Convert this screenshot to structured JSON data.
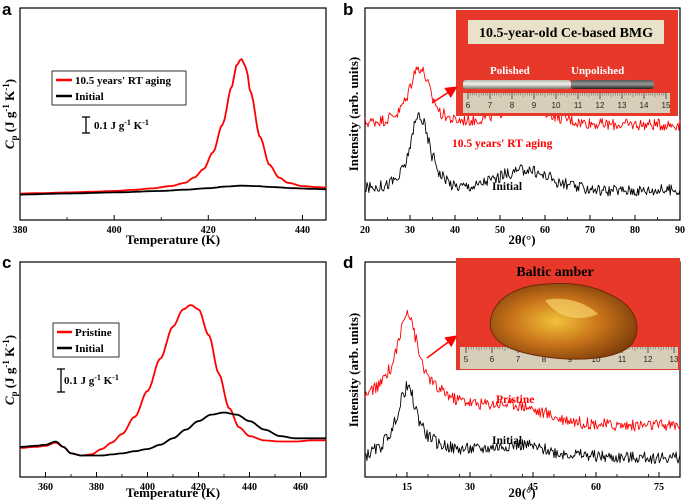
{
  "colors": {
    "aged": "#ff0000",
    "initial": "#000000",
    "photo_bg": "#e8382a"
  },
  "chart_data": [
    {
      "panel": "a",
      "type": "line",
      "xlabel": "Temperature (K)",
      "ylabel": "Cp (J g-1 K-1)",
      "ylabel_parts": {
        "main": "C",
        "sub": "p",
        "rest1": " (J g",
        "sup1": "-1",
        "rest2": " K",
        "sup2": "-1",
        "rest3": ")"
      },
      "xlim": [
        380,
        445
      ],
      "xticks": [
        380,
        400,
        420,
        440
      ],
      "ylim": [
        0,
        1
      ],
      "yticks": "none",
      "legend": {
        "placement": "top-left",
        "entries": [
          "10.5 years' RT aging",
          "Initial"
        ]
      },
      "scalebar": {
        "label": "0.1 J g-1 K-1",
        "parts": {
          "pre": "0.1 J g",
          "sup1": "-1",
          "mid": " K",
          "sup2": "-1"
        }
      },
      "series": [
        {
          "name": "10.5 years' RT aging",
          "color": "#ff0000",
          "x": [
            380,
            385,
            390,
            395,
            400,
            404,
            408,
            412,
            415,
            417,
            419,
            421,
            423,
            425,
            426,
            427,
            428,
            429,
            431,
            433,
            435,
            437,
            440,
            443,
            445
          ],
          "y": [
            0.125,
            0.127,
            0.13,
            0.133,
            0.137,
            0.142,
            0.149,
            0.16,
            0.175,
            0.2,
            0.24,
            0.32,
            0.45,
            0.63,
            0.73,
            0.76,
            0.72,
            0.6,
            0.39,
            0.26,
            0.2,
            0.175,
            0.16,
            0.155,
            0.153
          ]
        },
        {
          "name": "Initial",
          "color": "#000000",
          "x": [
            380,
            390,
            400,
            410,
            415,
            420,
            424,
            427,
            430,
            434,
            438,
            442,
            445
          ],
          "y": [
            0.12,
            0.125,
            0.13,
            0.137,
            0.143,
            0.15,
            0.158,
            0.162,
            0.16,
            0.155,
            0.15,
            0.147,
            0.145
          ]
        }
      ]
    },
    {
      "panel": "b",
      "type": "line",
      "xlabel": "2θ(°)",
      "ylabel": "Intensity (arb. units)",
      "xlim": [
        20,
        90
      ],
      "xticks": [
        20,
        30,
        40,
        50,
        60,
        70,
        80,
        90
      ],
      "ylim": [
        0,
        1
      ],
      "annotations": [
        "10.5 years' RT aging",
        "Initial"
      ],
      "photo": {
        "title": "10.5-year-old Ce-based BMG",
        "labels": [
          "Polished",
          "Unpolished"
        ],
        "ruler": [
          "6",
          "7",
          "8",
          "9",
          "10",
          "11",
          "12",
          "13",
          "14",
          "15"
        ]
      },
      "series": [
        {
          "name": "10.5 years' RT aging",
          "color": "#ff0000",
          "x": [
            20,
            24,
            27,
            29,
            30,
            31,
            32,
            33,
            34,
            35,
            37,
            40,
            44,
            48,
            52,
            56,
            60,
            64,
            68,
            74,
            80,
            90
          ],
          "y": [
            0.46,
            0.47,
            0.5,
            0.56,
            0.63,
            0.7,
            0.72,
            0.7,
            0.64,
            0.57,
            0.5,
            0.47,
            0.47,
            0.49,
            0.52,
            0.53,
            0.51,
            0.48,
            0.46,
            0.45,
            0.45,
            0.45
          ]
        },
        {
          "name": "Initial",
          "color": "#000000",
          "x": [
            20,
            24,
            27,
            29,
            30,
            31,
            32,
            33,
            34,
            35,
            37,
            40,
            44,
            48,
            52,
            56,
            60,
            64,
            68,
            74,
            80,
            90
          ],
          "y": [
            0.15,
            0.16,
            0.19,
            0.26,
            0.35,
            0.45,
            0.5,
            0.46,
            0.38,
            0.3,
            0.21,
            0.16,
            0.16,
            0.19,
            0.22,
            0.24,
            0.21,
            0.17,
            0.15,
            0.14,
            0.14,
            0.14
          ]
        }
      ]
    },
    {
      "panel": "c",
      "type": "line",
      "xlabel": "Temperature (K)",
      "ylabel": "Cp (J g-1 K-1)",
      "ylabel_parts": {
        "main": "C",
        "sub": "p",
        "rest1": " (J g",
        "sup1": "-1",
        "rest2": " K",
        "sup2": "-1",
        "rest3": ")"
      },
      "xlim": [
        350,
        470
      ],
      "xticks": [
        360,
        380,
        400,
        420,
        440,
        460
      ],
      "ylim": [
        0,
        1
      ],
      "legend": {
        "placement": "center-left",
        "entries": [
          "Pristine",
          "Initial"
        ]
      },
      "scalebar": {
        "label": "0.1 J g-1 K-1",
        "parts": {
          "pre": "0.1 J g",
          "sup1": "-1",
          "mid": " K",
          "sup2": "-1"
        }
      },
      "series": [
        {
          "name": "Pristine",
          "color": "#ff0000",
          "x": [
            350,
            356,
            360,
            364,
            367,
            370,
            374,
            378,
            382,
            386,
            390,
            395,
            400,
            405,
            410,
            414,
            417,
            420,
            424,
            428,
            432,
            436,
            440,
            446,
            452,
            458,
            464,
            470
          ],
          "y": [
            0.135,
            0.14,
            0.145,
            0.16,
            0.14,
            0.11,
            0.1,
            0.105,
            0.13,
            0.16,
            0.2,
            0.28,
            0.4,
            0.55,
            0.7,
            0.78,
            0.8,
            0.78,
            0.66,
            0.48,
            0.32,
            0.23,
            0.19,
            0.17,
            0.165,
            0.165,
            0.17,
            0.17
          ]
        },
        {
          "name": "Initial",
          "color": "#000000",
          "x": [
            350,
            356,
            360,
            364,
            367,
            370,
            374,
            378,
            382,
            386,
            390,
            395,
            400,
            405,
            410,
            415,
            420,
            425,
            430,
            435,
            440,
            446,
            452,
            458,
            464,
            470
          ],
          "y": [
            0.14,
            0.145,
            0.15,
            0.165,
            0.14,
            0.11,
            0.1,
            0.1,
            0.1,
            0.105,
            0.11,
            0.12,
            0.13,
            0.15,
            0.18,
            0.22,
            0.26,
            0.29,
            0.3,
            0.29,
            0.26,
            0.22,
            0.19,
            0.18,
            0.18,
            0.18
          ]
        }
      ]
    },
    {
      "panel": "d",
      "type": "line",
      "xlabel": "2θ(°)",
      "ylabel": "Intensity (arb. units)",
      "xlim": [
        5,
        80
      ],
      "xticks": [
        15,
        30,
        45,
        60,
        75
      ],
      "ylim": [
        0,
        1
      ],
      "annotations": [
        "Pristine",
        "Initial"
      ],
      "photo": {
        "title": "Baltic amber",
        "ruler": [
          "5",
          "6",
          "7",
          "8",
          "9",
          "10",
          "11",
          "12",
          "13"
        ]
      },
      "series": [
        {
          "name": "Pristine",
          "color": "#ff0000",
          "x": [
            5,
            8,
            11,
            13,
            14,
            15,
            16,
            17,
            18,
            20,
            23,
            27,
            32,
            37,
            40,
            43,
            47,
            52,
            58,
            65,
            72,
            80
          ],
          "y": [
            0.38,
            0.42,
            0.5,
            0.62,
            0.72,
            0.78,
            0.74,
            0.65,
            0.56,
            0.46,
            0.4,
            0.36,
            0.34,
            0.34,
            0.34,
            0.33,
            0.3,
            0.27,
            0.25,
            0.24,
            0.24,
            0.24
          ]
        },
        {
          "name": "Initial",
          "color": "#000000",
          "x": [
            5,
            8,
            11,
            13,
            14,
            15,
            16,
            17,
            18,
            20,
            23,
            27,
            32,
            37,
            40,
            43,
            47,
            52,
            58,
            65,
            72,
            80
          ],
          "y": [
            0.1,
            0.13,
            0.2,
            0.3,
            0.38,
            0.42,
            0.39,
            0.32,
            0.26,
            0.19,
            0.15,
            0.13,
            0.13,
            0.14,
            0.15,
            0.15,
            0.13,
            0.11,
            0.1,
            0.09,
            0.09,
            0.09
          ]
        }
      ]
    }
  ]
}
